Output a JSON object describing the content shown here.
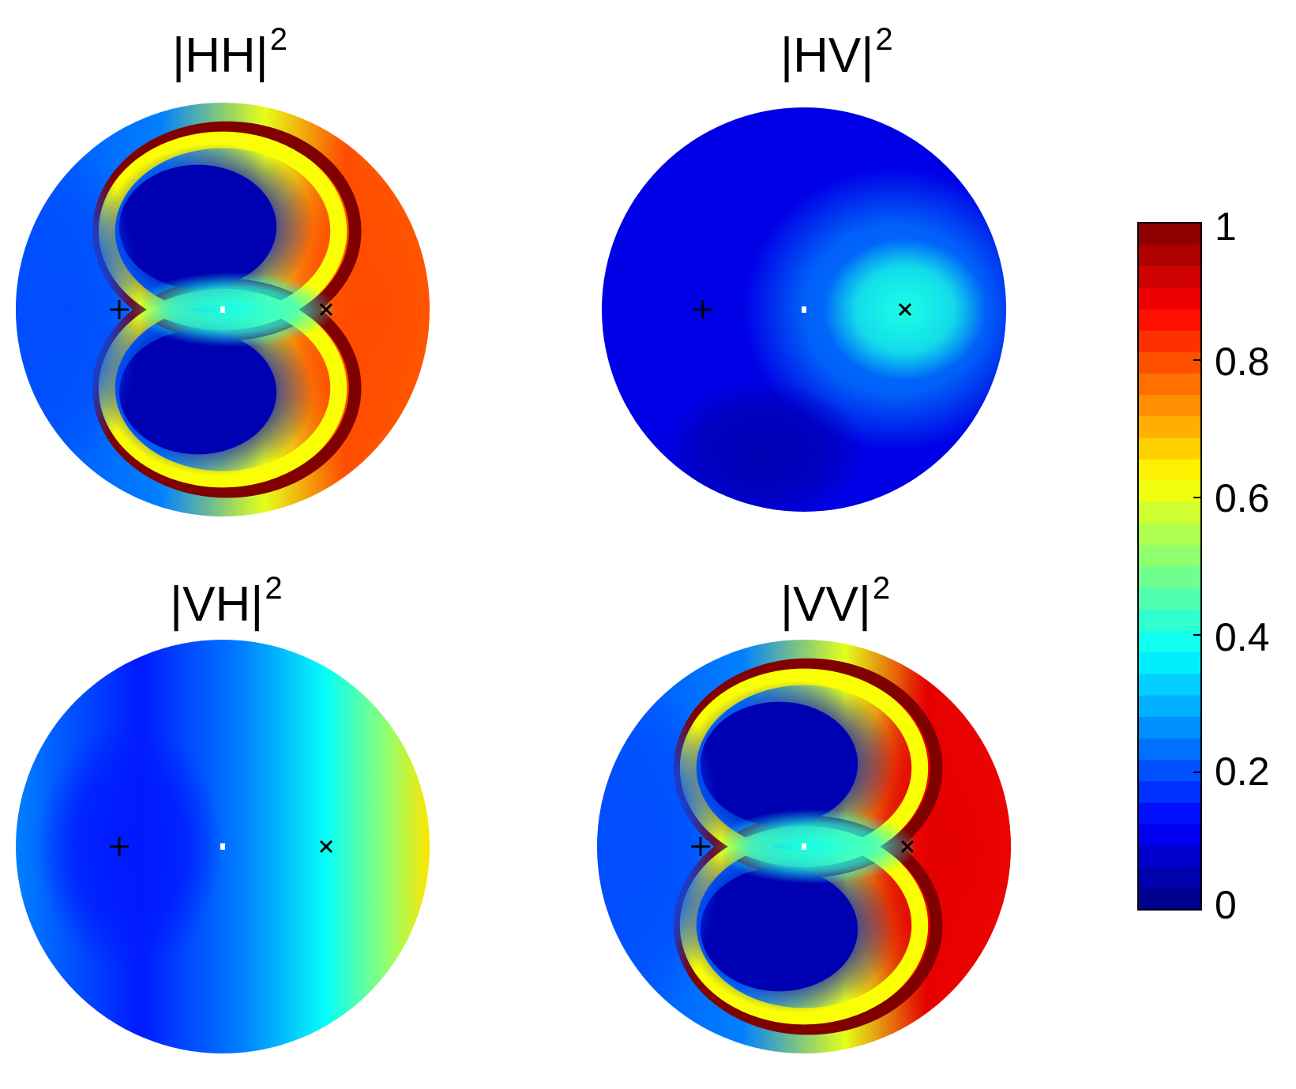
{
  "chart_data": {
    "type": "heatmap",
    "layout": "2x2 polar maps with shared colorbar",
    "colormap": "jet",
    "colorbar": {
      "range": [
        0,
        1
      ],
      "ticks": [
        "0",
        "0.2",
        "0.4",
        "0.6",
        "0.8",
        "1"
      ],
      "tick_values": [
        0,
        0.2,
        0.4,
        0.6,
        0.8,
        1
      ]
    },
    "markers": [
      {
        "symbol": "+",
        "color": "#000000"
      },
      {
        "symbol": "·",
        "color": "#ffffff"
      },
      {
        "symbol": "×",
        "color": "#000000"
      }
    ],
    "panels": [
      {
        "name": "HH",
        "title_base": "|HH|",
        "title_exp": "2",
        "pattern": "lobes",
        "center_value": 0.3,
        "edge_value": 0.8,
        "left_value": 0.2
      },
      {
        "name": "HV",
        "title_base": "|HV|",
        "title_exp": "2",
        "pattern": "smooth-low",
        "low_value": 0.1,
        "peak_value": 0.4
      },
      {
        "name": "VH",
        "title_base": "|VH|",
        "title_exp": "2",
        "pattern": "gradient",
        "left_value": 0.15,
        "right_value": 0.65
      },
      {
        "name": "VV",
        "title_base": "|VV|",
        "title_exp": "2",
        "pattern": "lobes-strong",
        "center_value": 0.3,
        "edge_value": 0.9,
        "left_value": 0.2
      }
    ]
  }
}
